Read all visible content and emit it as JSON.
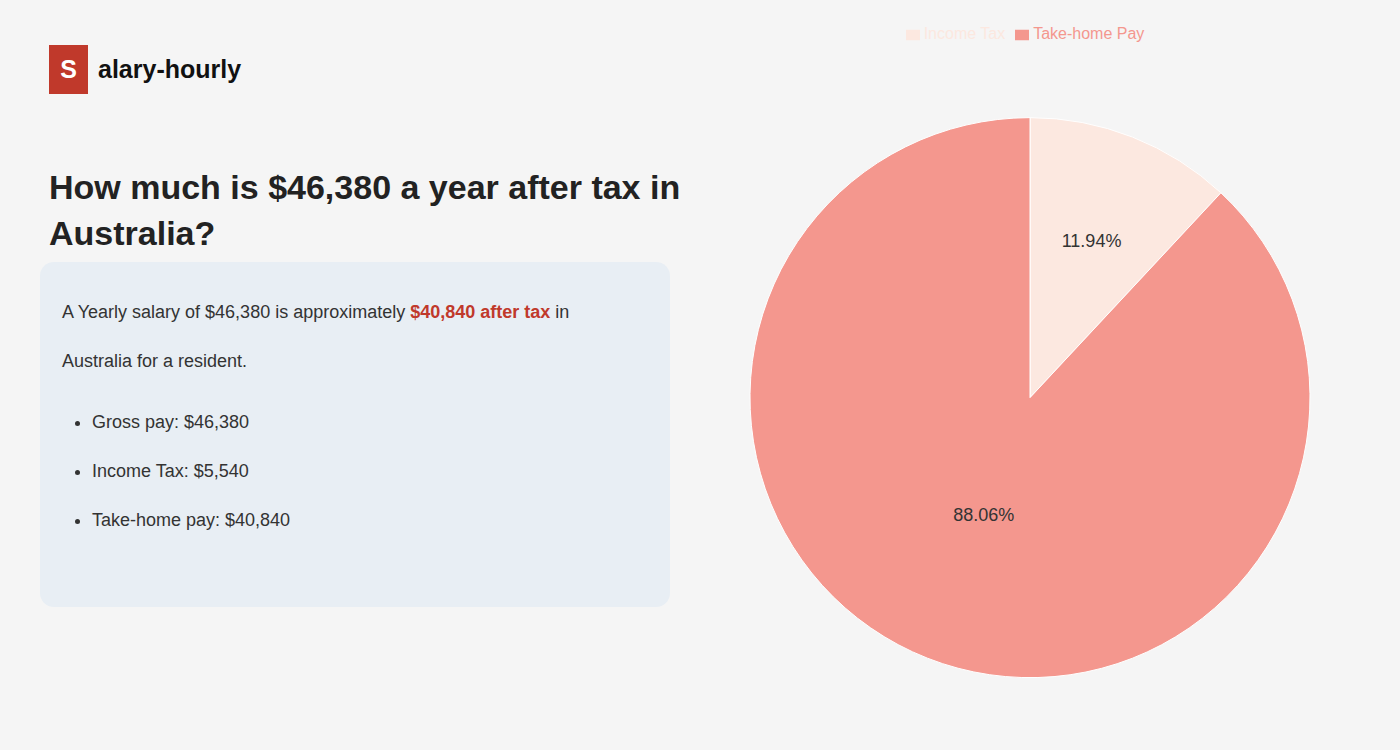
{
  "chart_data": {
    "type": "pie",
    "title": "How much is $46,380 a year after tax in\nAustralia?",
    "categories": [
      "Income Tax",
      "Take-home Pay"
    ],
    "values": [
      11.94,
      88.06
    ],
    "value_labels": [
      "11.94%",
      "88.06%"
    ],
    "colors": [
      "#fce8e0",
      "#f4978e"
    ],
    "data_labels": true,
    "legend": "top",
    "annotations": [
      "S",
      "alary-hourly",
      "A Yearly salary of $46,380 is approximately ",
      "$40,840 after tax",
      " in",
      "Australia for a resident.",
      "Gross pay: $46,380",
      "Income Tax: $5,540",
      "Take-home pay: $40,840"
    ]
  }
}
